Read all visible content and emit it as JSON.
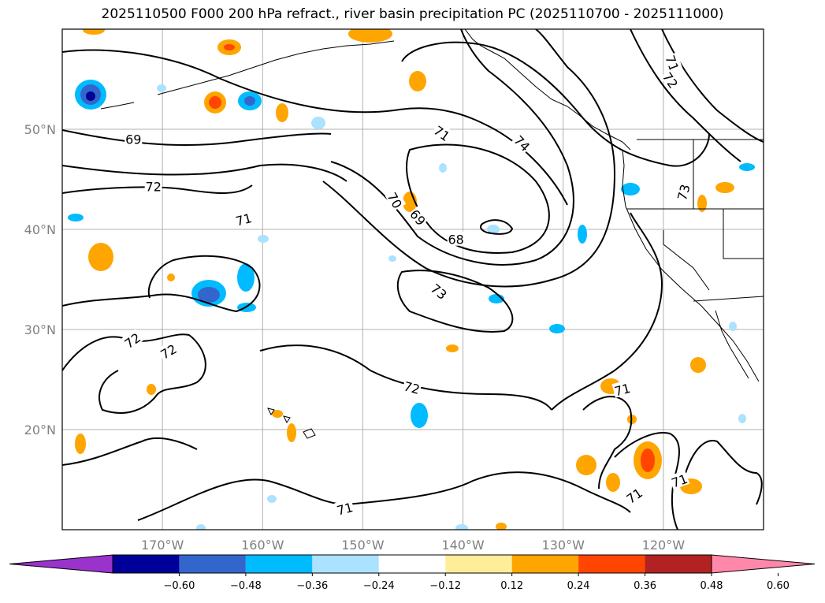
{
  "chart_data": {
    "type": "contour-map",
    "title": "2025110500 F000 200 hPa refract., river basin precipitation PC (2025110700 - 2025111000)",
    "projection": "equirectangular",
    "extent": {
      "lon": [
        -180,
        -110
      ],
      "lat": [
        10,
        60
      ]
    },
    "grid": true,
    "x_ticks": [
      {
        "lon": -170,
        "label": "170°W"
      },
      {
        "lon": -160,
        "label": "160°W"
      },
      {
        "lon": -150,
        "label": "150°W"
      },
      {
        "lon": -140,
        "label": "140°W"
      },
      {
        "lon": -130,
        "label": "130°W"
      },
      {
        "lon": -120,
        "label": "120°W"
      }
    ],
    "y_ticks": [
      {
        "lat": 20,
        "label": "20°N"
      },
      {
        "lat": 30,
        "label": "30°N"
      },
      {
        "lat": 40,
        "label": "40°N"
      },
      {
        "lat": 50,
        "label": "50°N"
      }
    ],
    "contour_labels": [
      {
        "text": "69",
        "lon": -172.9,
        "lat": 49.0,
        "rot": 0
      },
      {
        "text": "72",
        "lon": -170.9,
        "lat": 44.3,
        "rot": 0
      },
      {
        "text": "71",
        "lon": -161.9,
        "lat": 41.0,
        "rot": -15
      },
      {
        "text": "72",
        "lon": -173.0,
        "lat": 28.9,
        "rot": -35
      },
      {
        "text": "72",
        "lon": -169.4,
        "lat": 27.8,
        "rot": -30
      },
      {
        "text": "70",
        "lon": -146.8,
        "lat": 42.9,
        "rot": 60
      },
      {
        "text": "69",
        "lon": -144.5,
        "lat": 41.2,
        "rot": 50
      },
      {
        "text": "68",
        "lon": -140.7,
        "lat": 39.0,
        "rot": 0
      },
      {
        "text": "71",
        "lon": -142.1,
        "lat": 49.6,
        "rot": 35
      },
      {
        "text": "74",
        "lon": -134.1,
        "lat": 48.6,
        "rot": 45
      },
      {
        "text": "71",
        "lon": -119.1,
        "lat": 56.6,
        "rot": 70
      },
      {
        "text": "72",
        "lon": -119.3,
        "lat": 54.9,
        "rot": 55
      },
      {
        "text": "73",
        "lon": -142.4,
        "lat": 33.8,
        "rot": 40
      },
      {
        "text": "73",
        "lon": -118.0,
        "lat": 43.7,
        "rot": -75
      },
      {
        "text": "72",
        "lon": -145.1,
        "lat": 24.2,
        "rot": 15
      },
      {
        "text": "71",
        "lon": -124.1,
        "lat": 24.0,
        "rot": -15
      },
      {
        "text": "71",
        "lon": -122.9,
        "lat": 13.4,
        "rot": -35
      },
      {
        "text": "71",
        "lon": -118.4,
        "lat": 14.9,
        "rot": -20
      },
      {
        "text": "71",
        "lon": -151.8,
        "lat": 12.1,
        "rot": -15
      }
    ],
    "colorbar": {
      "extend": "both",
      "colors": [
        "#9933cc",
        "#000099",
        "#3366cc",
        "#00bbff",
        "#aae2ff",
        "#ffffff",
        "#ffee99",
        "#ffa500",
        "#ff4500",
        "#b22222",
        "#ff88aa"
      ],
      "tick_values": [
        -0.6,
        -0.48,
        -0.36,
        -0.24,
        -0.12,
        0.12,
        0.24,
        0.36,
        0.48,
        0.6
      ],
      "tick_labels": [
        "−0.60",
        "−0.48",
        "−0.36",
        "−0.24",
        "−0.12",
        "0.12",
        "0.24",
        "0.36",
        "0.48",
        "0.60"
      ]
    }
  }
}
